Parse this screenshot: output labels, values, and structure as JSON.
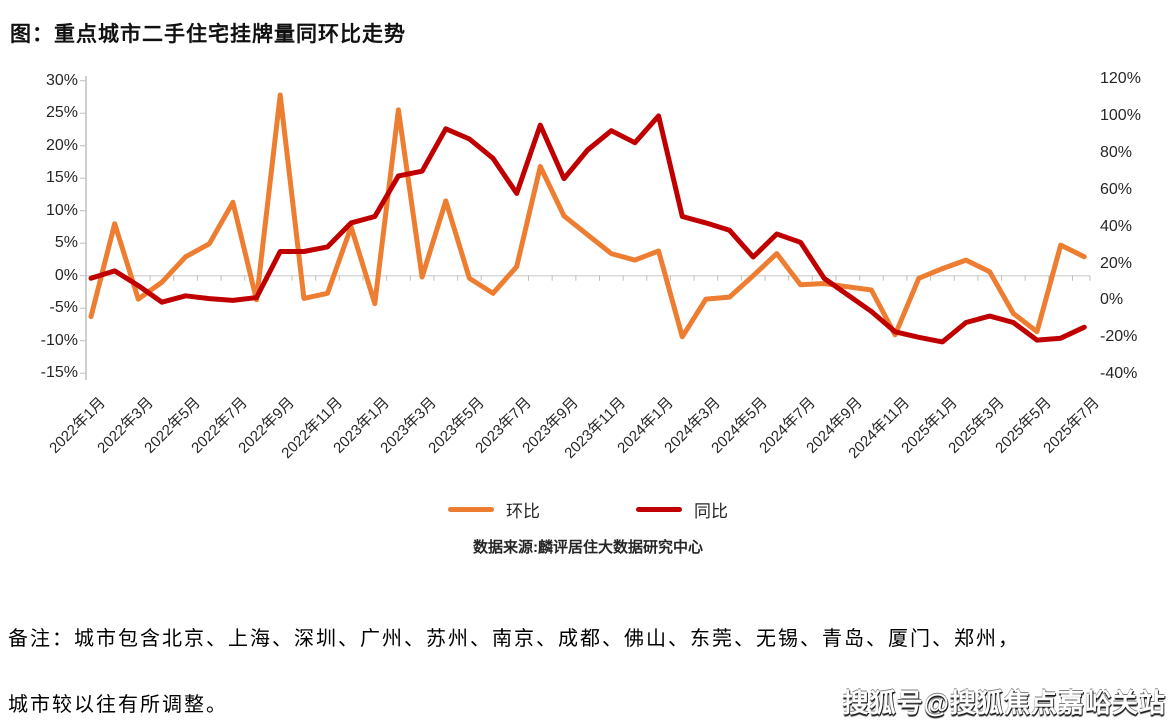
{
  "page": {
    "title": "图：重点城市二手住宅挂牌量同环比走势"
  },
  "chart_data": {
    "type": "line",
    "title": "图：重点城市二手住宅挂牌量同环比走势",
    "categories": [
      "2022年1月",
      "2022年2月",
      "2022年3月",
      "2022年4月",
      "2022年5月",
      "2022年6月",
      "2022年7月",
      "2022年8月",
      "2022年9月",
      "2022年10月",
      "2022年11月",
      "2022年12月",
      "2023年1月",
      "2023年2月",
      "2023年3月",
      "2023年4月",
      "2023年5月",
      "2023年6月",
      "2023年7月",
      "2023年8月",
      "2023年9月",
      "2023年10月",
      "2023年11月",
      "2023年12月",
      "2024年1月",
      "2024年2月",
      "2024年3月",
      "2024年4月",
      "2024年5月",
      "2024年6月",
      "2024年7月",
      "2024年8月",
      "2024年9月",
      "2024年10月",
      "2024年11月",
      "2024年12月",
      "2025年1月",
      "2025年2月",
      "2025年3月",
      "2025年4月",
      "2025年5月",
      "2025年6月",
      "2025年7月"
    ],
    "x_tick_every": 2,
    "series": [
      {
        "name": "环比",
        "axis": "left",
        "color": "#ED7D31",
        "values": [
          -6.3,
          8.0,
          -3.6,
          -1.0,
          2.9,
          4.9,
          11.3,
          -3.7,
          27.8,
          -3.5,
          -2.7,
          7.5,
          -4.3,
          25.5,
          -0.2,
          11.5,
          -0.4,
          -2.7,
          1.4,
          16.8,
          9.2,
          6.3,
          3.4,
          2.4,
          3.8,
          -9.4,
          -3.6,
          -3.3,
          0.0,
          3.4,
          -1.4,
          -1.2,
          -1.7,
          -2.2,
          -9.1,
          -0.4,
          1.1,
          2.4,
          0.6,
          -5.8,
          -8.6,
          4.7,
          2.9
        ]
      },
      {
        "name": "同比",
        "axis": "right",
        "color": "#C00000",
        "values": [
          12,
          16,
          8,
          -1,
          2.5,
          1,
          0,
          1.5,
          26.5,
          26.5,
          29,
          42,
          45.5,
          67.5,
          70,
          93,
          87.5,
          77,
          58,
          95,
          66,
          81.5,
          92,
          85.5,
          100,
          45.5,
          42,
          38,
          23.5,
          36,
          31.5,
          12,
          3,
          -6,
          -17,
          -20,
          -22.5,
          -12,
          -8.5,
          -12,
          -21.5,
          -20.5,
          -14.5
        ]
      }
    ],
    "left_axis": {
      "ticks": [
        "30%",
        "25%",
        "20%",
        "15%",
        "10%",
        "5%",
        "0%",
        "-5%",
        "-10%",
        "-15%"
      ],
      "values": [
        30,
        25,
        20,
        15,
        10,
        5,
        0,
        -5,
        -10,
        -15
      ],
      "range": [
        -15,
        30
      ]
    },
    "right_axis": {
      "ticks": [
        "120%",
        "100%",
        "80%",
        "60%",
        "40%",
        "20%",
        "0%",
        "-20%",
        "-40%"
      ],
      "values": [
        120,
        100,
        80,
        60,
        40,
        20,
        0,
        -20,
        -40
      ],
      "range": [
        -40,
        120
      ]
    },
    "grid": "single horizontal gridline at primary 0%",
    "legend_position": "bottom-center"
  },
  "legend": {
    "items": [
      {
        "label": "环比",
        "color": "#ED7D31"
      },
      {
        "label": "同比",
        "color": "#C00000"
      }
    ]
  },
  "source": "数据来源:麟评居住大数据研究中心",
  "note": {
    "line1": "备注：城市包含北京、上海、深圳、广州、苏州、南京、成都、佛山、东莞、无锡、青岛、厦门、郑州，",
    "line2": "城市较以往有所调整。"
  },
  "watermark": "搜狐号@搜狐焦点嘉峪关站"
}
